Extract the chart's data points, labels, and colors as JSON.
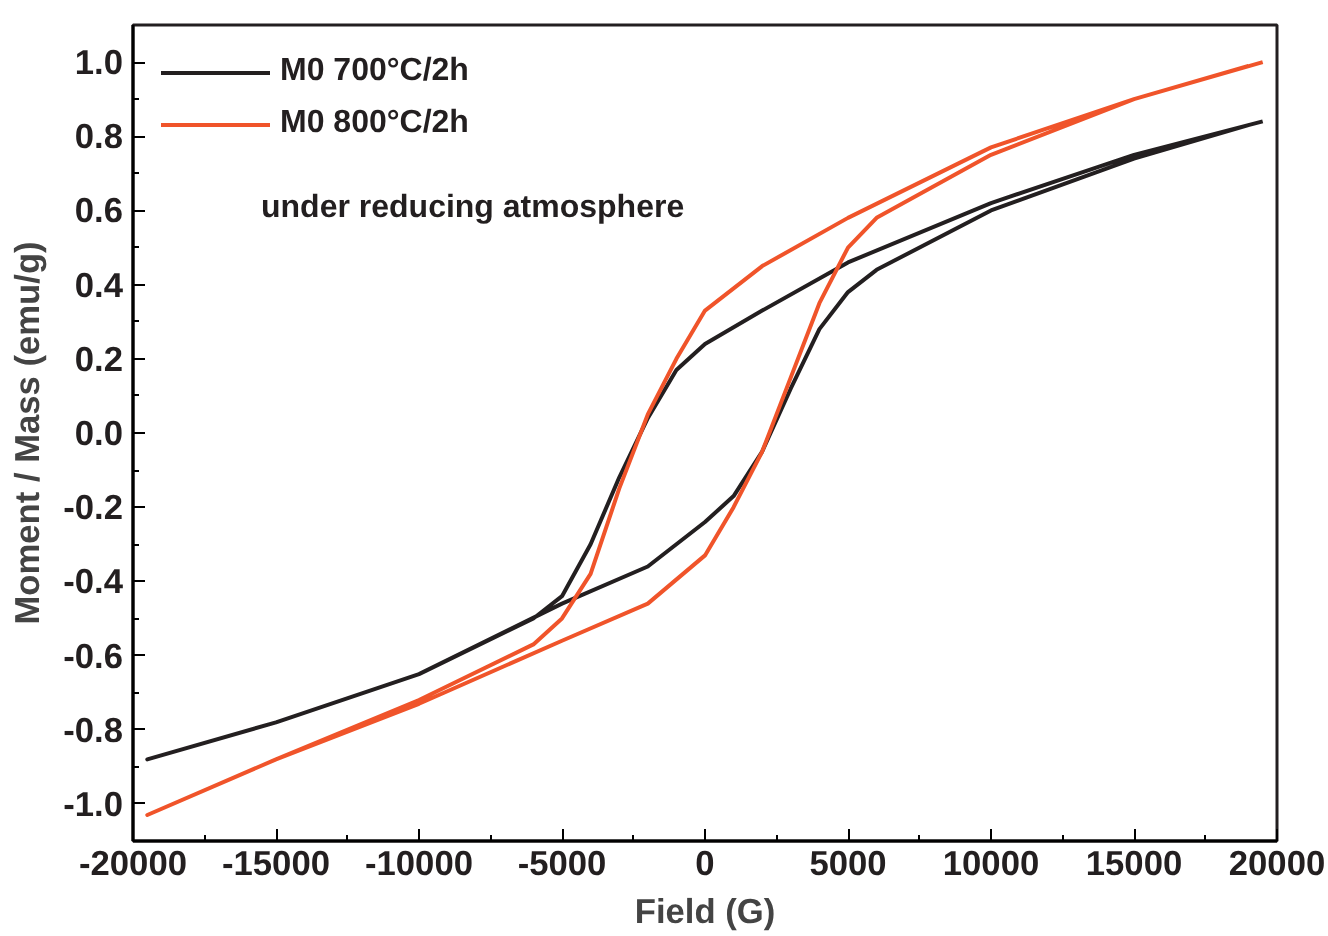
{
  "chart_data": {
    "type": "line",
    "xlabel": "Field (G)",
    "ylabel": "Moment / Mass (emu/g)",
    "xlim": [
      -20000,
      20000
    ],
    "ylim": [
      -1.1,
      1.1
    ],
    "xticks": [
      -20000,
      -15000,
      -10000,
      -5000,
      0,
      5000,
      10000,
      15000,
      20000
    ],
    "yticks": [
      {
        "value": -1.0,
        "label": "-1.0"
      },
      -0.8,
      -0.6,
      -0.4,
      -0.2,
      {
        "value": 0.0,
        "label": "0.0"
      },
      0.2,
      0.4,
      0.6,
      0.8,
      {
        "value": 1.0,
        "label": "1.0"
      }
    ],
    "grid": false,
    "legend": "top left",
    "line_style": "solid",
    "marker": "none",
    "annotations": [
      "under reducing atmosphere"
    ],
    "series": [
      {
        "name": "M0 700°C/2h",
        "color": "#231f20",
        "x": [
          19500,
          15000,
          10000,
          5000,
          2000,
          0,
          -1000,
          -2000,
          -3000,
          -4000,
          -5000,
          -6000,
          -10000,
          -15000,
          -19500,
          -15000,
          -10000,
          -5000,
          -2000,
          0,
          1000,
          2000,
          3000,
          4000,
          5000,
          6000,
          10000,
          15000,
          19000
        ],
        "values": [
          0.84,
          0.75,
          0.62,
          0.46,
          0.33,
          0.24,
          0.17,
          0.04,
          -0.12,
          -0.3,
          -0.44,
          -0.5,
          -0.65,
          -0.78,
          -0.88,
          -0.78,
          -0.65,
          -0.46,
          -0.36,
          -0.24,
          -0.17,
          -0.05,
          0.12,
          0.28,
          0.38,
          0.44,
          0.6,
          0.74,
          0.83
        ]
      },
      {
        "name": "M0 800°C/2h",
        "color": "#f0542a",
        "x": [
          19500,
          15000,
          10000,
          5000,
          2000,
          0,
          -1000,
          -2000,
          -3000,
          -4000,
          -5000,
          -6000,
          -10000,
          -15000,
          -19500,
          -15000,
          -10000,
          -5000,
          -2000,
          0,
          1000,
          2000,
          3000,
          4000,
          5000,
          6000,
          10000,
          15000,
          19000
        ],
        "values": [
          1.0,
          0.9,
          0.77,
          0.58,
          0.45,
          0.33,
          0.2,
          0.05,
          -0.15,
          -0.38,
          -0.5,
          -0.57,
          -0.72,
          -0.88,
          -1.03,
          -0.88,
          -0.73,
          -0.56,
          -0.46,
          -0.33,
          -0.2,
          -0.05,
          0.15,
          0.35,
          0.5,
          0.58,
          0.75,
          0.9,
          0.99
        ]
      }
    ]
  }
}
